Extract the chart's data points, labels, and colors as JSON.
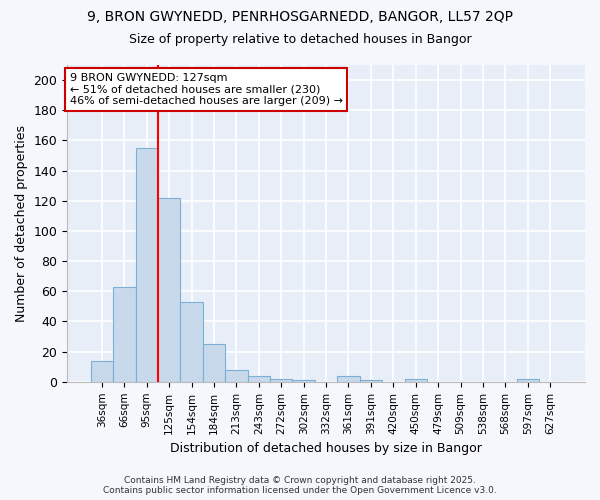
{
  "title_line1": "9, BRON GWYNEDD, PENRHOSGARNEDD, BANGOR, LL57 2QP",
  "title_line2": "Size of property relative to detached houses in Bangor",
  "xlabel": "Distribution of detached houses by size in Bangor",
  "ylabel": "Number of detached properties",
  "categories": [
    "36sqm",
    "66sqm",
    "95sqm",
    "125sqm",
    "154sqm",
    "184sqm",
    "213sqm",
    "243sqm",
    "272sqm",
    "302sqm",
    "332sqm",
    "361sqm",
    "391sqm",
    "420sqm",
    "450sqm",
    "479sqm",
    "509sqm",
    "538sqm",
    "568sqm",
    "597sqm",
    "627sqm"
  ],
  "values": [
    14,
    63,
    155,
    122,
    53,
    25,
    8,
    4,
    2,
    1,
    0,
    4,
    1,
    0,
    2,
    0,
    0,
    0,
    0,
    2,
    0
  ],
  "bar_color": "#c9d9ec",
  "bar_edge_color": "#7bafd4",
  "background_color": "#e8eef8",
  "grid_color": "#ffffff",
  "redline_index": 3,
  "annotation_text_line1": "9 BRON GWYNEDD: 127sqm",
  "annotation_text_line2": "← 51% of detached houses are smaller (230)",
  "annotation_text_line3": "46% of semi-detached houses are larger (209) →",
  "annotation_box_facecolor": "#ffffff",
  "annotation_box_edgecolor": "#cc0000",
  "ylim": [
    0,
    210
  ],
  "yticks": [
    0,
    20,
    40,
    60,
    80,
    100,
    120,
    140,
    160,
    180,
    200
  ],
  "footer_line1": "Contains HM Land Registry data © Crown copyright and database right 2025.",
  "footer_line2": "Contains public sector information licensed under the Open Government Licence v3.0.",
  "fig_background": "#f5f7fc"
}
